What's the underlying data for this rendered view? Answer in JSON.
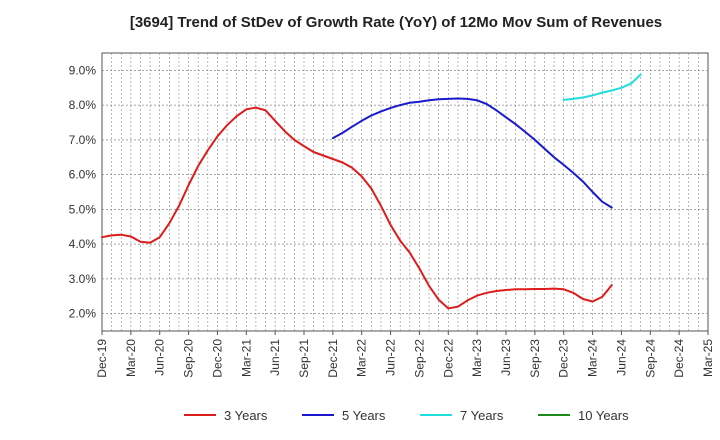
{
  "chart_data": {
    "type": "line",
    "title": "[3694]  Trend of StDev of Growth Rate (YoY) of 12Mo Mov Sum of Revenues",
    "xlabel": "",
    "ylabel": "",
    "x_ticks": [
      "Dec-19",
      "Mar-20",
      "Jun-20",
      "Sep-20",
      "Dec-20",
      "Mar-21",
      "Jun-21",
      "Sep-21",
      "Dec-21",
      "Mar-22",
      "Jun-22",
      "Sep-22",
      "Dec-22",
      "Mar-23",
      "Jun-23",
      "Sep-23",
      "Dec-23",
      "Mar-24",
      "Jun-24",
      "Sep-24",
      "Dec-24",
      "Mar-25"
    ],
    "y_ticks": [
      "2.0%",
      "3.0%",
      "4.0%",
      "5.0%",
      "6.0%",
      "7.0%",
      "8.0%",
      "9.0%"
    ],
    "ylim": [
      1.5,
      9.5
    ],
    "x_range_months": [
      0,
      63
    ],
    "grid": true,
    "legend_position": "bottom",
    "series": [
      {
        "name": "3 Years",
        "color": "#dd1c1c",
        "x": [
          0,
          1,
          2,
          3,
          4,
          5,
          6,
          7,
          8,
          9,
          10,
          11,
          12,
          13,
          14,
          15,
          16,
          17,
          18,
          19,
          20,
          21,
          22,
          23,
          24,
          25,
          26,
          27,
          28,
          29,
          30,
          31,
          32,
          33,
          34,
          35,
          36,
          37,
          38,
          39,
          40,
          41,
          42,
          43,
          44,
          45,
          46,
          47,
          48,
          49,
          50,
          51,
          52,
          53,
          54,
          55,
          56,
          57,
          58,
          59,
          60
        ],
        "values": [
          4.2,
          4.25,
          4.27,
          4.22,
          4.07,
          4.04,
          4.2,
          4.6,
          5.1,
          5.7,
          6.25,
          6.7,
          7.1,
          7.42,
          7.68,
          7.88,
          7.93,
          7.85,
          7.55,
          7.25,
          7.0,
          6.82,
          6.65,
          6.55,
          6.45,
          6.35,
          6.2,
          5.95,
          5.6,
          5.1,
          4.55,
          4.1,
          3.75,
          3.3,
          2.8,
          2.4,
          2.15,
          2.2,
          2.38,
          2.52,
          2.6,
          2.65,
          2.68,
          2.7,
          2.7,
          2.71,
          2.71,
          2.72,
          2.7,
          2.6,
          2.42,
          2.35,
          2.48,
          2.82,
          null,
          null,
          null,
          null,
          null,
          null,
          null
        ]
      },
      {
        "name": "5 Years",
        "color": "#1a1acc",
        "x": [
          24,
          25,
          26,
          27,
          28,
          29,
          30,
          31,
          32,
          33,
          34,
          35,
          36,
          37,
          38,
          39,
          40,
          41,
          42,
          43,
          44,
          45,
          46,
          47,
          48,
          49,
          50,
          51,
          52,
          53,
          54,
          55,
          56,
          57,
          58,
          59,
          60
        ],
        "values": [
          7.05,
          7.2,
          7.38,
          7.55,
          7.7,
          7.82,
          7.92,
          8.0,
          8.07,
          8.1,
          8.14,
          8.17,
          8.18,
          8.19,
          8.18,
          8.14,
          8.03,
          7.85,
          7.65,
          7.45,
          7.23,
          7.0,
          6.75,
          6.5,
          6.28,
          6.05,
          5.8,
          5.5,
          5.22,
          5.05,
          null,
          null,
          null,
          null,
          null,
          null,
          null
        ]
      },
      {
        "name": "7 Years",
        "color": "#22dddd",
        "x": [
          48,
          49,
          50,
          51,
          52,
          53,
          54,
          55,
          56,
          57,
          58,
          59,
          60
        ],
        "values": [
          8.15,
          8.18,
          8.22,
          8.28,
          8.36,
          8.42,
          8.5,
          8.62,
          8.88,
          null,
          null,
          null,
          null
        ]
      },
      {
        "name": "10 Years",
        "color": "#1a8c1a",
        "x": [],
        "values": []
      }
    ]
  }
}
